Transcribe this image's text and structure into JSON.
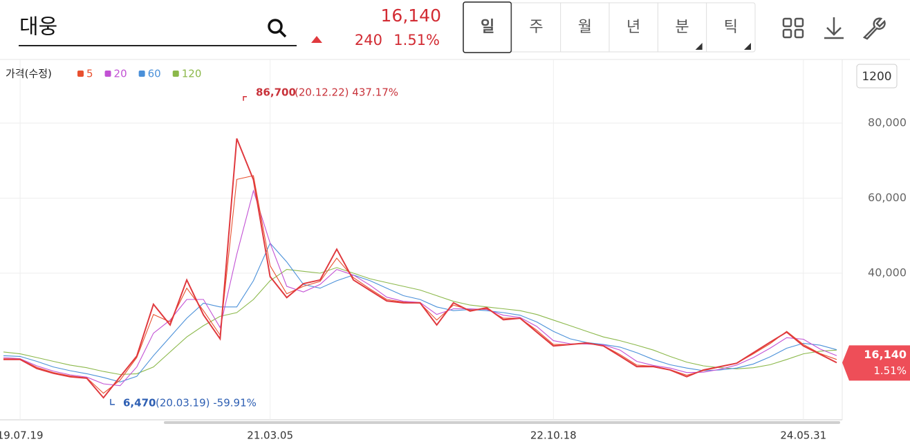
{
  "header": {
    "name": "대웅",
    "price": {
      "value": 16140,
      "label": "16,140"
    },
    "change": 240,
    "change_pct": {
      "value": 1.51,
      "label": "1.51%"
    },
    "tabs": [
      "일",
      "주",
      "월",
      "년",
      "분",
      "틱"
    ],
    "zoom": "1200"
  },
  "chart_data": {
    "type": "line",
    "legend_title": "가격(수정)",
    "categories": [
      null,
      "19.07.19",
      null,
      null,
      null,
      null,
      null,
      null,
      null,
      null,
      null,
      null,
      null,
      null,
      null,
      null,
      "21.03.05",
      null,
      null,
      null,
      null,
      null,
      null,
      null,
      null,
      null,
      null,
      null,
      null,
      null,
      null,
      null,
      null,
      "22.10.18",
      null,
      null,
      null,
      null,
      null,
      null,
      null,
      null,
      null,
      null,
      null,
      null,
      null,
      null,
      "24.05.31",
      null,
      null
    ],
    "series": [
      {
        "name": "가격(수정)",
        "color": "#e0393e",
        "values": [
          17000,
          17000,
          14600,
          13300,
          12400,
          12000,
          6800,
          12400,
          17900,
          31700,
          26200,
          38200,
          28900,
          22500,
          75900,
          64900,
          39100,
          33500,
          37200,
          38200,
          46400,
          38200,
          35400,
          32600,
          32100,
          32100,
          26200,
          32100,
          29900,
          30800,
          27600,
          28000,
          24300,
          20600,
          21000,
          21400,
          20600,
          17900,
          15100,
          15100,
          14200,
          12400,
          14200,
          15100,
          16000,
          18800,
          21600,
          24300,
          20600,
          18400,
          16140
        ]
      },
      {
        "name": "5",
        "color": "#e8502f",
        "values": [
          17200,
          17100,
          14900,
          13500,
          12600,
          12100,
          8000,
          11500,
          17500,
          29000,
          27000,
          36000,
          30000,
          23500,
          65000,
          66000,
          42000,
          34500,
          36500,
          37800,
          44000,
          38800,
          35800,
          33000,
          32300,
          32000,
          27500,
          31500,
          30200,
          30500,
          28000,
          28000,
          24800,
          21000,
          21000,
          21300,
          20700,
          18300,
          15500,
          15200,
          14300,
          12800,
          14000,
          15000,
          16000,
          18500,
          21200,
          24500,
          21000,
          18600,
          17000
        ]
      },
      {
        "name": "20",
        "color": "#c251d4",
        "values": [
          17500,
          17200,
          15300,
          13900,
          12900,
          12300,
          10500,
          10000,
          15000,
          24000,
          27500,
          33000,
          33000,
          25500,
          45000,
          62000,
          48000,
          36500,
          35000,
          37000,
          41000,
          39500,
          36800,
          33600,
          32500,
          32200,
          29000,
          30500,
          30500,
          30300,
          28800,
          28200,
          25800,
          22000,
          21200,
          21100,
          20900,
          19500,
          16500,
          15400,
          14700,
          13500,
          13600,
          14400,
          15500,
          17500,
          20000,
          22800,
          22400,
          19800,
          18000
        ]
      },
      {
        "name": "60",
        "color": "#4a90d9",
        "values": [
          18000,
          17800,
          16500,
          15000,
          14000,
          13200,
          12200,
          11000,
          12500,
          18000,
          23000,
          28000,
          32000,
          31000,
          31000,
          38000,
          48000,
          43000,
          37000,
          36000,
          38000,
          39500,
          38000,
          36000,
          34000,
          33000,
          31000,
          30000,
          30300,
          30000,
          29500,
          28800,
          27000,
          24500,
          22500,
          21500,
          21000,
          20300,
          18800,
          17000,
          15600,
          14700,
          14000,
          14200,
          14700,
          15800,
          17700,
          20000,
          21300,
          20800,
          19600
        ]
      },
      {
        "name": "120",
        "color": "#8bb84a",
        "values": [
          19000,
          18500,
          17500,
          16500,
          15500,
          14800,
          13800,
          13000,
          13200,
          15000,
          19000,
          23000,
          26000,
          28500,
          29500,
          33000,
          38000,
          41000,
          40500,
          40000,
          41500,
          40000,
          38500,
          37500,
          36500,
          35500,
          34000,
          32500,
          31500,
          31000,
          30500,
          30000,
          29000,
          27500,
          26000,
          24500,
          23000,
          22000,
          20800,
          19500,
          17800,
          16300,
          15300,
          14800,
          14500,
          14800,
          15600,
          17000,
          18500,
          19200,
          19500
        ]
      }
    ],
    "ylim": [
      1100,
      96600
    ],
    "yticks": [
      {
        "value": 40000,
        "label": "40,000"
      },
      {
        "value": 60000,
        "label": "60,000"
      },
      {
        "value": 80000,
        "label": "80,000"
      }
    ],
    "grid": true,
    "high": {
      "value": 86700,
      "label": "86,700",
      "note": "(20.12.22) 437.17%"
    },
    "low": {
      "value": 6470,
      "label": "6,470",
      "note": "(20.03.19) -59.91%"
    },
    "last": {
      "value": 16140,
      "label": "16,140",
      "pct": "1.51%"
    }
  }
}
